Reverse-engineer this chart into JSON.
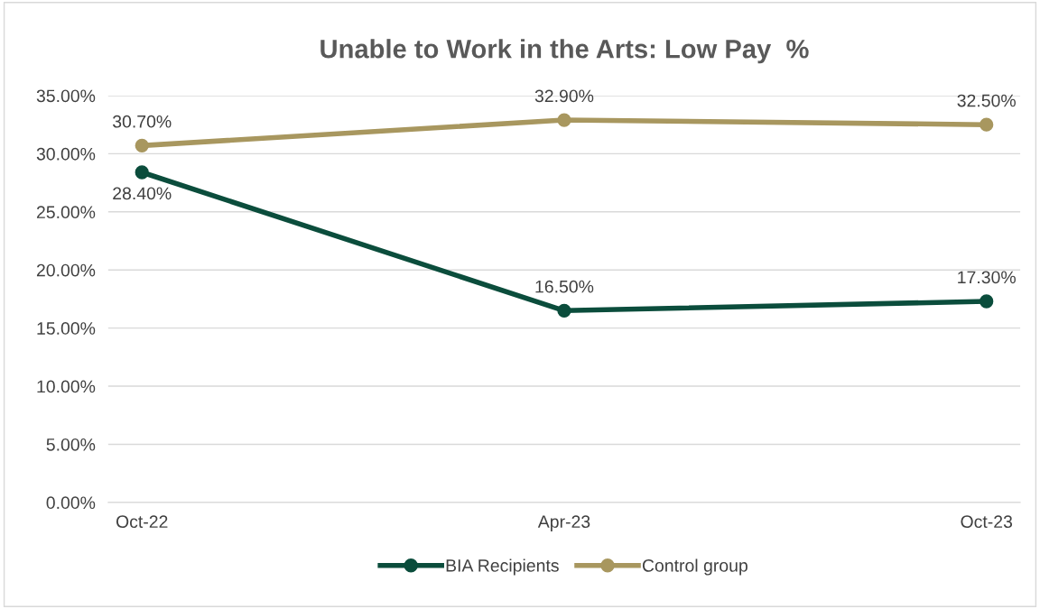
{
  "chart_data": {
    "type": "line",
    "title": "Unable to Work in the Arts: Low Pay  %",
    "categories": [
      "Oct-22",
      "Apr-23",
      "Oct-23"
    ],
    "series": [
      {
        "name": "BIA Recipients",
        "color": "#0b4d3c",
        "values": [
          28.4,
          16.5,
          17.3
        ],
        "value_labels": [
          "28.40%",
          "16.50%",
          "17.30%"
        ]
      },
      {
        "name": "Control group",
        "color": "#a8975f",
        "values": [
          30.7,
          32.9,
          32.5
        ],
        "value_labels": [
          "30.70%",
          "32.90%",
          "32.50%"
        ]
      }
    ],
    "ylim": [
      0,
      35
    ],
    "yticks": [
      {
        "value": 0,
        "label": "0.00%"
      },
      {
        "value": 5,
        "label": "5.00%"
      },
      {
        "value": 10,
        "label": "10.00%"
      },
      {
        "value": 15,
        "label": "15.00%"
      },
      {
        "value": 20,
        "label": "20.00%"
      },
      {
        "value": 25,
        "label": "25.00%"
      },
      {
        "value": 30,
        "label": "30.00%"
      },
      {
        "value": 35,
        "label": "35.00%"
      }
    ],
    "grid": "y",
    "legend": "bottom",
    "marker": "circle",
    "line_style": "solid"
  }
}
